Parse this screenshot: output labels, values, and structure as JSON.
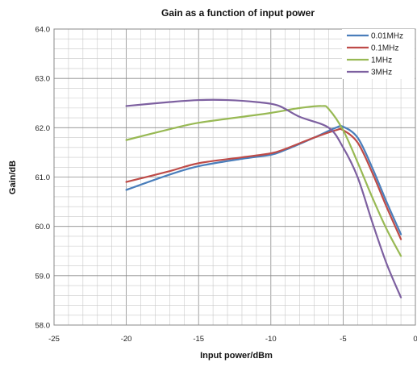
{
  "chart_data": {
    "type": "line",
    "title": "Gain as a function of input power",
    "xlabel": "Input power/dBm",
    "ylabel": "Gain/dB",
    "xlim": [
      -25,
      0
    ],
    "ylim": [
      58.0,
      64.0
    ],
    "x_ticks": [
      "-25",
      "-20",
      "-15",
      "-10",
      "-5",
      "0"
    ],
    "y_ticks": [
      "58.0",
      "59.0",
      "60.0",
      "61.0",
      "62.0",
      "63.0",
      "64.0"
    ],
    "grid": true,
    "legend_position": "top-right",
    "series": [
      {
        "name": "0.01MHz",
        "color": "#4a7ebb",
        "points": [
          [
            -20,
            60.74
          ],
          [
            -17,
            61.05
          ],
          [
            -15,
            61.22
          ],
          [
            -12,
            61.37
          ],
          [
            -10,
            61.45
          ],
          [
            -9,
            61.55
          ],
          [
            -7,
            61.8
          ],
          [
            -5.5,
            62.0
          ],
          [
            -5,
            62.02
          ],
          [
            -4,
            61.8
          ],
          [
            -3,
            61.2
          ],
          [
            -2,
            60.5
          ],
          [
            -1,
            59.84
          ]
        ]
      },
      {
        "name": "0.1MHz",
        "color": "#be4b48",
        "points": [
          [
            -20,
            60.9
          ],
          [
            -17,
            61.12
          ],
          [
            -15,
            61.28
          ],
          [
            -12,
            61.4
          ],
          [
            -10,
            61.48
          ],
          [
            -9,
            61.57
          ],
          [
            -7,
            61.8
          ],
          [
            -5.5,
            61.95
          ],
          [
            -5,
            61.95
          ],
          [
            -4,
            61.7
          ],
          [
            -3,
            61.1
          ],
          [
            -2,
            60.4
          ],
          [
            -1,
            59.74
          ]
        ]
      },
      {
        "name": "1MHz",
        "color": "#98b954",
        "points": [
          [
            -20,
            61.75
          ],
          [
            -17,
            61.97
          ],
          [
            -15,
            62.1
          ],
          [
            -12,
            62.22
          ],
          [
            -10,
            62.3
          ],
          [
            -8,
            62.4
          ],
          [
            -6.5,
            62.44
          ],
          [
            -6,
            62.38
          ],
          [
            -5,
            61.95
          ],
          [
            -4,
            61.3
          ],
          [
            -3,
            60.6
          ],
          [
            -2,
            59.95
          ],
          [
            -1,
            59.4
          ]
        ]
      },
      {
        "name": "3MHz",
        "color": "#7d60a0",
        "points": [
          [
            -20,
            62.44
          ],
          [
            -17,
            62.52
          ],
          [
            -15,
            62.56
          ],
          [
            -13,
            62.56
          ],
          [
            -11,
            62.52
          ],
          [
            -9.5,
            62.45
          ],
          [
            -8,
            62.22
          ],
          [
            -6,
            62.0
          ],
          [
            -5,
            61.6
          ],
          [
            -4,
            61.0
          ],
          [
            -3,
            60.1
          ],
          [
            -2,
            59.25
          ],
          [
            -1,
            58.56
          ]
        ]
      }
    ]
  }
}
